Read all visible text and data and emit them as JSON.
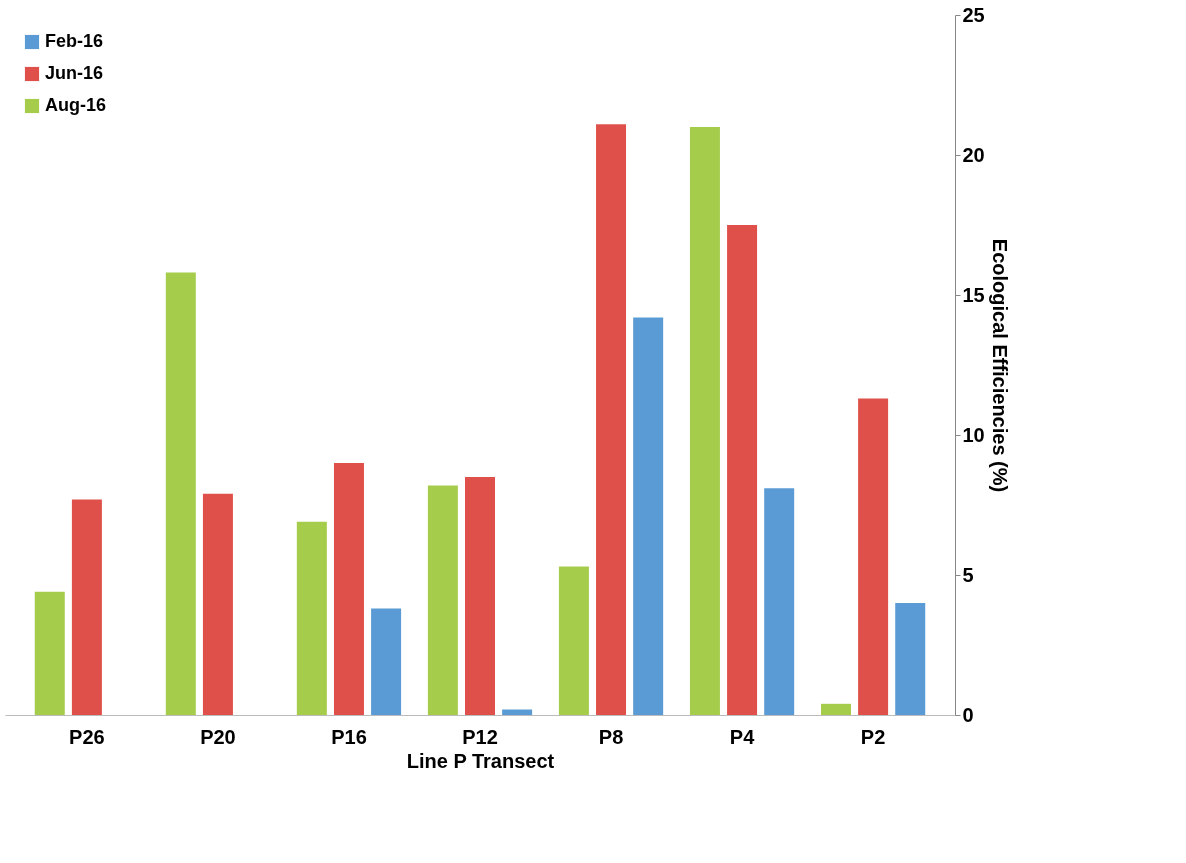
{
  "chart_data": {
    "type": "bar",
    "xlabel": "Line P Transect",
    "ylabel": "Ecological Efficiencies (%)",
    "categories": [
      "P26",
      "P20",
      "P16",
      "P12",
      "P8",
      "P4",
      "P2"
    ],
    "series": [
      {
        "name": "Feb-16",
        "color": "#5b9bd5",
        "values": [
          null,
          null,
          3.8,
          0.2,
          14.2,
          8.1,
          4.0
        ]
      },
      {
        "name": "Jun-16",
        "color": "#e0504a",
        "values": [
          7.7,
          7.9,
          9.0,
          8.5,
          21.1,
          17.5,
          11.3
        ]
      },
      {
        "name": "Aug-16",
        "color": "#a6cc4c",
        "values": [
          4.4,
          15.8,
          6.9,
          8.2,
          5.3,
          21.0,
          0.4
        ]
      }
    ],
    "ylim": [
      0,
      25
    ],
    "yticks": [
      0,
      5,
      10,
      15,
      20,
      25
    ],
    "grid": false,
    "legend": "top left"
  }
}
